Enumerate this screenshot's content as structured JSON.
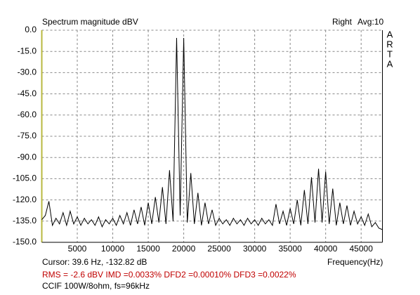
{
  "chart_data": {
    "type": "line",
    "title": "Spectrum magnitude dBV",
    "channel": "Right",
    "averaging": "Avg:10",
    "brand_letters": [
      "A",
      "R",
      "T",
      "A"
    ],
    "xlabel": "Frequency(Hz)",
    "cursor": "Cursor:   39.6 Hz, -132.82 dB",
    "measurements": "RMS =   -2.6 dBV   IMD =0.0033%  DFD2 =0.00010%  DFD3 =0.0022%",
    "caption": "CCIF 100W/8ohm, fs=96kHz",
    "color": "#000000",
    "grid": true,
    "xlim": [
      0,
      48000
    ],
    "ylim": [
      -150,
      0
    ],
    "xticks": [
      5000,
      10000,
      15000,
      20000,
      25000,
      30000,
      35000,
      40000,
      45000
    ],
    "yticks": [
      {
        "value": 0,
        "label": "0.0"
      },
      {
        "value": -15,
        "label": "-15.0"
      },
      {
        "value": -30,
        "label": "-30.0"
      },
      {
        "value": -45,
        "label": "-45.0"
      },
      {
        "value": -60,
        "label": "-60.0"
      },
      {
        "value": -75,
        "label": "-75.0"
      },
      {
        "value": -90,
        "label": "-90.0"
      },
      {
        "value": -105,
        "label": "-105.0"
      },
      {
        "value": -120,
        "label": "-120.0"
      },
      {
        "value": -135,
        "label": "-135.0"
      },
      {
        "value": -150,
        "label": "-150.0"
      }
    ],
    "x": [
      0,
      500,
      1000,
      1500,
      2000,
      2500,
      3000,
      3500,
      4000,
      4500,
      5000,
      5500,
      6000,
      6500,
      7000,
      7500,
      8000,
      8500,
      9000,
      9500,
      10000,
      10500,
      11000,
      11500,
      12000,
      12500,
      13000,
      13500,
      14000,
      14500,
      15000,
      15500,
      16000,
      16500,
      17000,
      17500,
      18000,
      18500,
      19000,
      19500,
      20000,
      20500,
      21000,
      21500,
      22000,
      22500,
      23000,
      23500,
      24000,
      24500,
      25000,
      25500,
      26000,
      26500,
      27000,
      27500,
      28000,
      28500,
      29000,
      29500,
      30000,
      30500,
      31000,
      31500,
      32000,
      32500,
      33000,
      33500,
      34000,
      34500,
      35000,
      35500,
      36000,
      36500,
      37000,
      37500,
      38000,
      38500,
      39000,
      39500,
      40000,
      40500,
      41000,
      41500,
      42000,
      42500,
      43000,
      43500,
      44000,
      44500,
      45000,
      45500,
      46000,
      46500,
      47000,
      47500,
      48000
    ],
    "values": [
      -134,
      -131,
      -121,
      -138,
      -133,
      -137,
      -129,
      -138,
      -128,
      -137,
      -132,
      -138,
      -133,
      -137,
      -134,
      -138,
      -132,
      -139,
      -134,
      -137,
      -133,
      -138,
      -131,
      -137,
      -129,
      -138,
      -127,
      -137,
      -125,
      -138,
      -122,
      -137,
      -118,
      -136,
      -111,
      -137,
      -99,
      -135,
      -5.5,
      -131,
      -5.5,
      -136,
      -101,
      -137,
      -115,
      -138,
      -122,
      -137,
      -127,
      -138,
      -133,
      -137,
      -134,
      -138,
      -133,
      -137,
      -134,
      -138,
      -133,
      -137,
      -134,
      -138,
      -133,
      -137,
      -134,
      -138,
      -123,
      -137,
      -128,
      -138,
      -126,
      -137,
      -120,
      -138,
      -113,
      -137,
      -104,
      -136,
      -98,
      -136,
      -100,
      -137,
      -112,
      -138,
      -122,
      -137,
      -124,
      -138,
      -128,
      -137,
      -132,
      -138,
      -130,
      -139,
      -136,
      -140,
      -141
    ]
  }
}
